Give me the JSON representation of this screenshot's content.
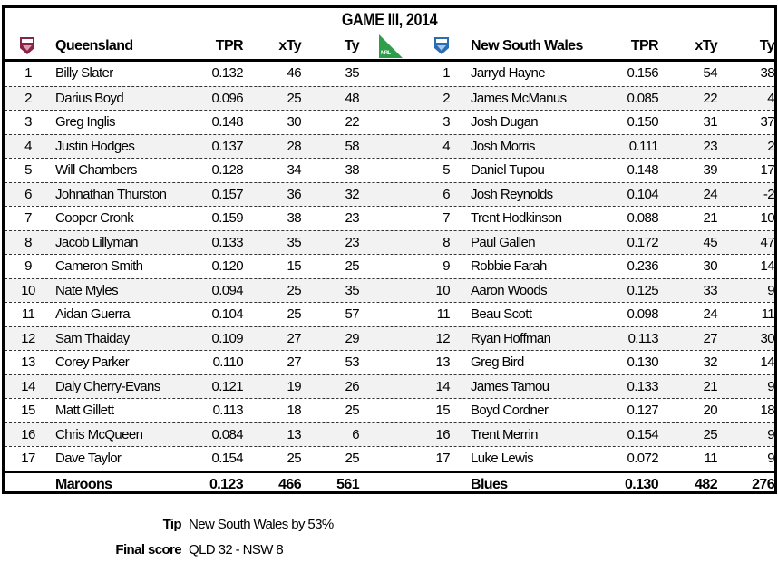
{
  "title": "GAME III, 2014",
  "headers": {
    "home_team": "Queensland",
    "away_team": "New South Wales",
    "tpr": "TPR",
    "xty": "xTy",
    "ty": "Ty"
  },
  "logos": {
    "home": "QLD",
    "away": "NSW",
    "nrl": "NRL"
  },
  "colors": {
    "qld": "#8b2346",
    "nsw": "#2a6cb5",
    "nrl": "#2e9e4a",
    "alt_row": "#f2f2f2"
  },
  "home_players": [
    [
      "1",
      "Billy Slater",
      "0.132",
      "46",
      "35"
    ],
    [
      "2",
      "Darius Boyd",
      "0.096",
      "25",
      "48"
    ],
    [
      "3",
      "Greg Inglis",
      "0.148",
      "30",
      "22"
    ],
    [
      "4",
      "Justin Hodges",
      "0.137",
      "28",
      "58"
    ],
    [
      "5",
      "Will Chambers",
      "0.128",
      "34",
      "38"
    ],
    [
      "6",
      "Johnathan Thurston",
      "0.157",
      "36",
      "32"
    ],
    [
      "7",
      "Cooper Cronk",
      "0.159",
      "38",
      "23"
    ],
    [
      "8",
      "Jacob Lillyman",
      "0.133",
      "35",
      "23"
    ],
    [
      "9",
      "Cameron Smith",
      "0.120",
      "15",
      "25"
    ],
    [
      "10",
      "Nate Myles",
      "0.094",
      "25",
      "35"
    ],
    [
      "11",
      "Aidan Guerra",
      "0.104",
      "25",
      "57"
    ],
    [
      "12",
      "Sam Thaiday",
      "0.109",
      "27",
      "29"
    ],
    [
      "13",
      "Corey Parker",
      "0.110",
      "27",
      "53"
    ],
    [
      "14",
      "Daly Cherry-Evans",
      "0.121",
      "19",
      "26"
    ],
    [
      "15",
      "Matt Gillett",
      "0.113",
      "18",
      "25"
    ],
    [
      "16",
      "Chris McQueen",
      "0.084",
      "13",
      "6"
    ],
    [
      "17",
      "Dave Taylor",
      "0.154",
      "25",
      "25"
    ]
  ],
  "away_players": [
    [
      "1",
      "Jarryd Hayne",
      "0.156",
      "54",
      "38"
    ],
    [
      "2",
      "James McManus",
      "0.085",
      "22",
      "4"
    ],
    [
      "3",
      "Josh Dugan",
      "0.150",
      "31",
      "37"
    ],
    [
      "4",
      "Josh Morris",
      "0.111",
      "23",
      "2"
    ],
    [
      "5",
      "Daniel Tupou",
      "0.148",
      "39",
      "17"
    ],
    [
      "6",
      "Josh Reynolds",
      "0.104",
      "24",
      "-2"
    ],
    [
      "7",
      "Trent Hodkinson",
      "0.088",
      "21",
      "10"
    ],
    [
      "8",
      "Paul Gallen",
      "0.172",
      "45",
      "47"
    ],
    [
      "9",
      "Robbie Farah",
      "0.236",
      "30",
      "14"
    ],
    [
      "10",
      "Aaron Woods",
      "0.125",
      "33",
      "9"
    ],
    [
      "11",
      "Beau Scott",
      "0.098",
      "24",
      "11"
    ],
    [
      "12",
      "Ryan Hoffman",
      "0.113",
      "27",
      "30"
    ],
    [
      "13",
      "Greg Bird",
      "0.130",
      "32",
      "14"
    ],
    [
      "14",
      "James Tamou",
      "0.133",
      "21",
      "9"
    ],
    [
      "15",
      "Boyd Cordner",
      "0.127",
      "20",
      "18"
    ],
    [
      "16",
      "Trent Merrin",
      "0.154",
      "25",
      "9"
    ],
    [
      "17",
      "Luke Lewis",
      "0.072",
      "11",
      "9"
    ]
  ],
  "totals": {
    "home": {
      "name": "Maroons",
      "tpr": "0.123",
      "xty": "466",
      "ty": "561"
    },
    "away": {
      "name": "Blues",
      "tpr": "0.130",
      "xty": "482",
      "ty": "276"
    }
  },
  "footer": {
    "tip_label": "Tip",
    "tip_value": "New South Wales by 53%",
    "score_label": "Final score",
    "score_value": "QLD 32 - NSW 8"
  }
}
